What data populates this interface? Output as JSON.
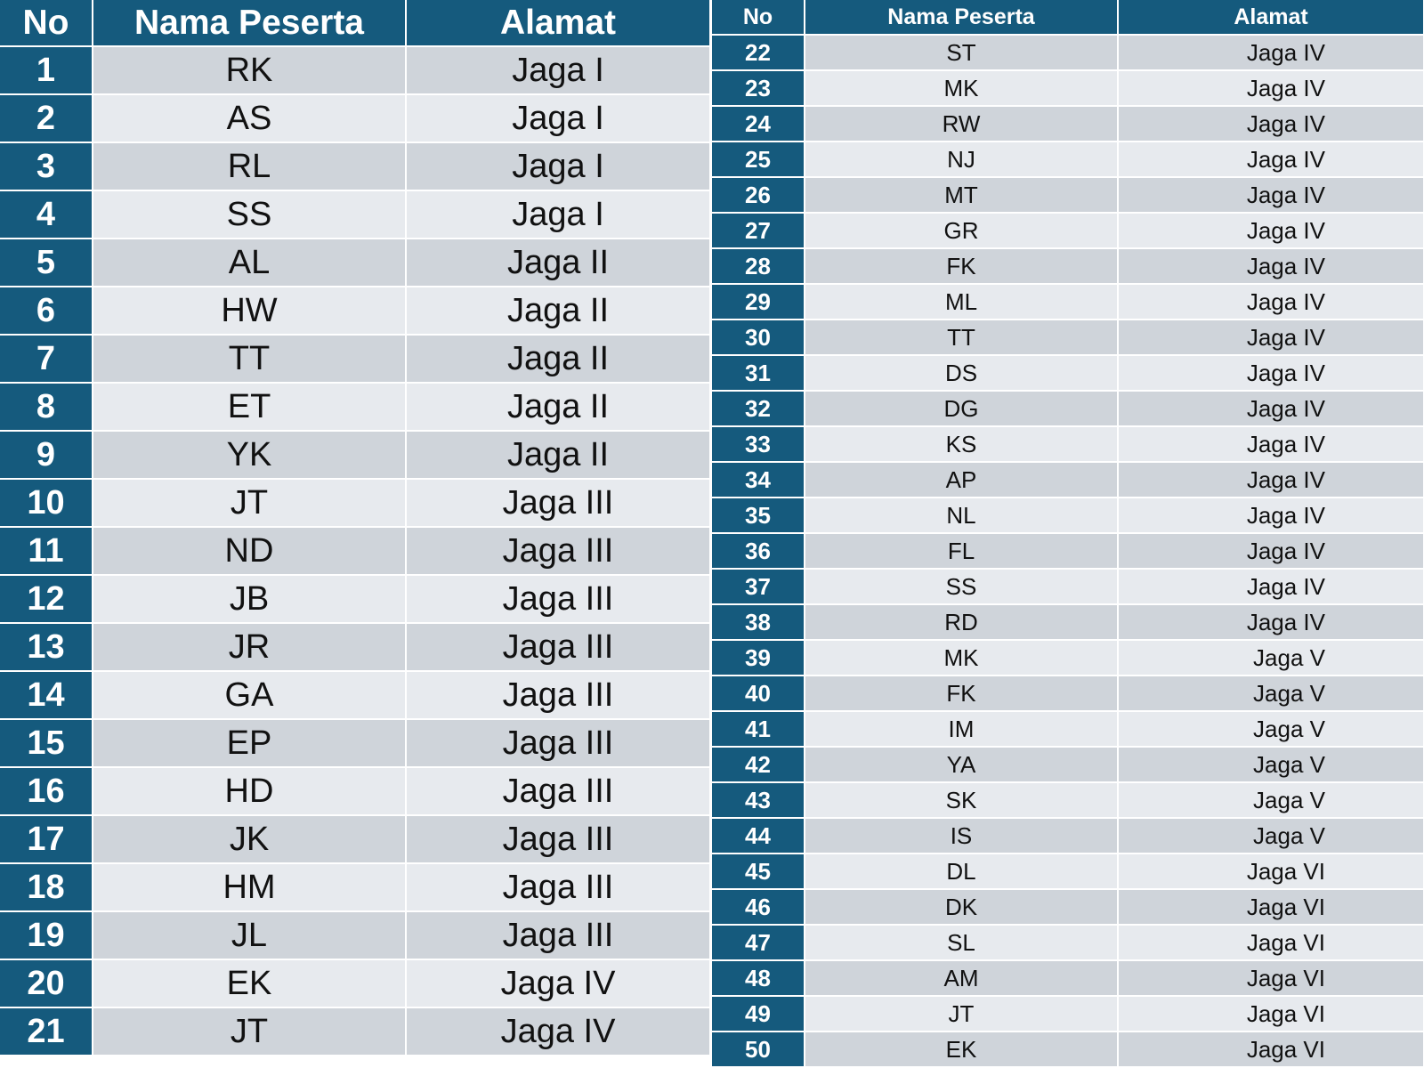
{
  "headers": {
    "no": "No",
    "nama": "Nama Peserta",
    "alamat": "Alamat"
  },
  "left_rows": [
    {
      "no": "1",
      "nama": "RK",
      "alamat": "Jaga I"
    },
    {
      "no": "2",
      "nama": "AS",
      "alamat": "Jaga I"
    },
    {
      "no": "3",
      "nama": "RL",
      "alamat": "Jaga I"
    },
    {
      "no": "4",
      "nama": "SS",
      "alamat": "Jaga I"
    },
    {
      "no": "5",
      "nama": "AL",
      "alamat": "Jaga II"
    },
    {
      "no": "6",
      "nama": "HW",
      "alamat": "Jaga II"
    },
    {
      "no": "7",
      "nama": "TT",
      "alamat": "Jaga II"
    },
    {
      "no": "8",
      "nama": "ET",
      "alamat": "Jaga II"
    },
    {
      "no": "9",
      "nama": "YK",
      "alamat": "Jaga II"
    },
    {
      "no": "10",
      "nama": "JT",
      "alamat": "Jaga III"
    },
    {
      "no": "11",
      "nama": "ND",
      "alamat": "Jaga III"
    },
    {
      "no": "12",
      "nama": "JB",
      "alamat": "Jaga III"
    },
    {
      "no": "13",
      "nama": "JR",
      "alamat": "Jaga III"
    },
    {
      "no": "14",
      "nama": "GA",
      "alamat": "Jaga III"
    },
    {
      "no": "15",
      "nama": "EP",
      "alamat": "Jaga III"
    },
    {
      "no": "16",
      "nama": "HD",
      "alamat": "Jaga III"
    },
    {
      "no": "17",
      "nama": "JK",
      "alamat": "Jaga III"
    },
    {
      "no": "18",
      "nama": "HM",
      "alamat": "Jaga III"
    },
    {
      "no": "19",
      "nama": "JL",
      "alamat": "Jaga III"
    },
    {
      "no": "20",
      "nama": "EK",
      "alamat": "Jaga IV"
    },
    {
      "no": "21",
      "nama": "JT",
      "alamat": "Jaga IV"
    }
  ],
  "right_rows": [
    {
      "no": "22",
      "nama": "ST",
      "alamat": "Jaga IV"
    },
    {
      "no": "23",
      "nama": "MK",
      "alamat": "Jaga IV"
    },
    {
      "no": "24",
      "nama": "RW",
      "alamat": "Jaga IV"
    },
    {
      "no": "25",
      "nama": "NJ",
      "alamat": "Jaga IV"
    },
    {
      "no": "26",
      "nama": "MT",
      "alamat": "Jaga IV"
    },
    {
      "no": "27",
      "nama": "GR",
      "alamat": "Jaga IV"
    },
    {
      "no": "28",
      "nama": "FK",
      "alamat": "Jaga IV"
    },
    {
      "no": "29",
      "nama": "ML",
      "alamat": "Jaga IV"
    },
    {
      "no": "30",
      "nama": "TT",
      "alamat": "Jaga IV"
    },
    {
      "no": "31",
      "nama": "DS",
      "alamat": "Jaga IV"
    },
    {
      "no": "32",
      "nama": "DG",
      "alamat": "Jaga IV"
    },
    {
      "no": "33",
      "nama": "KS",
      "alamat": "Jaga IV"
    },
    {
      "no": "34",
      "nama": "AP",
      "alamat": "Jaga IV"
    },
    {
      "no": "35",
      "nama": "NL",
      "alamat": "Jaga  IV"
    },
    {
      "no": "36",
      "nama": "FL",
      "alamat": "Jaga IV"
    },
    {
      "no": "37",
      "nama": "SS",
      "alamat": "Jaga IV"
    },
    {
      "no": "38",
      "nama": "RD",
      "alamat": "Jaga IV"
    },
    {
      "no": "39",
      "nama": "MK",
      "alamat": "Jaga V"
    },
    {
      "no": "40",
      "nama": "FK",
      "alamat": "Jaga V"
    },
    {
      "no": "41",
      "nama": "IM",
      "alamat": "Jaga V"
    },
    {
      "no": "42",
      "nama": "YA",
      "alamat": "Jaga V"
    },
    {
      "no": "43",
      "nama": "SK",
      "alamat": "Jaga V"
    },
    {
      "no": "44",
      "nama": "IS",
      "alamat": "Jaga V"
    },
    {
      "no": "45",
      "nama": "DL",
      "alamat": "Jaga VI"
    },
    {
      "no": "46",
      "nama": "DK",
      "alamat": "Jaga VI"
    },
    {
      "no": "47",
      "nama": "SL",
      "alamat": "Jaga VI"
    },
    {
      "no": "48",
      "nama": "AM",
      "alamat": "Jaga VI"
    },
    {
      "no": "49",
      "nama": "JT",
      "alamat": "Jaga VI"
    },
    {
      "no": "50",
      "nama": "EK",
      "alamat": "Jaga VI"
    }
  ]
}
